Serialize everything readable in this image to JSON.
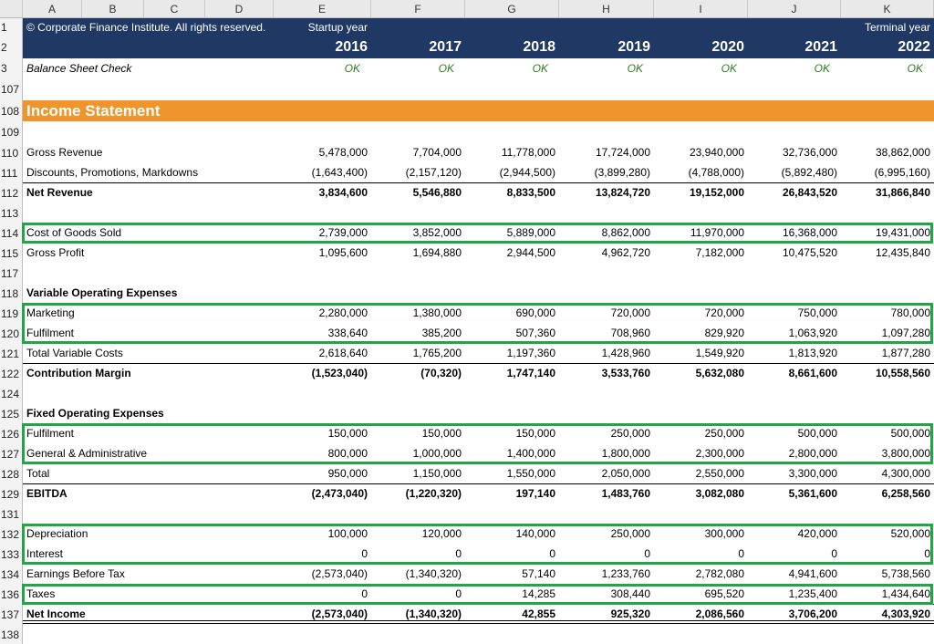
{
  "columns": [
    "A",
    "B",
    "C",
    "D",
    "E",
    "F",
    "G",
    "H",
    "I",
    "J",
    "K"
  ],
  "banner": {
    "rows": [
      1,
      2
    ],
    "copyright": "© Corporate Finance Institute. All rights reserved.",
    "startup_label": "Startup year",
    "terminal_label": "Terminal year",
    "years": [
      2016,
      2017,
      2018,
      2019,
      2020,
      2021,
      2022
    ]
  },
  "check": {
    "row": 3,
    "label": "Balance Sheet Check",
    "values": [
      "OK",
      "OK",
      "OK",
      "OK",
      "OK",
      "OK",
      "OK"
    ]
  },
  "rows": [
    {
      "row": 107
    },
    {
      "row": 108,
      "label": "Income Statement",
      "style": "section"
    },
    {
      "row": 109
    },
    {
      "row": 110,
      "label": "Gross Revenue",
      "values": [
        "5,478,000",
        "7,704,000",
        "11,778,000",
        "17,724,000",
        "23,940,000",
        "32,736,000",
        "38,862,000"
      ]
    },
    {
      "row": 111,
      "label": "Discounts, Promotions, Markdowns",
      "values": [
        "(1,643,400)",
        "(2,157,120)",
        "(2,944,500)",
        "(3,899,280)",
        "(4,788,000)",
        "(5,892,480)",
        "(6,995,160)"
      ]
    },
    {
      "row": 112,
      "label": "Net Revenue",
      "style": "bold",
      "values": [
        "3,834,600",
        "5,546,880",
        "8,833,500",
        "13,824,720",
        "19,152,000",
        "26,843,520",
        "31,866,840"
      ]
    },
    {
      "row": 113
    },
    {
      "row": 114,
      "label": "Cost of Goods Sold",
      "highlight": true,
      "values": [
        "2,739,000",
        "3,852,000",
        "5,889,000",
        "8,862,000",
        "11,970,000",
        "16,368,000",
        "19,431,000"
      ]
    },
    {
      "row": 115,
      "label": "Gross Profit",
      "values": [
        "1,095,600",
        "1,694,880",
        "2,944,500",
        "4,962,720",
        "7,182,000",
        "10,475,520",
        "12,435,840"
      ]
    },
    {
      "row": 117
    },
    {
      "row": 118,
      "label": "Variable Operating Expenses",
      "style": "bold"
    },
    {
      "row": 119,
      "label": "Marketing",
      "highlight": true,
      "values": [
        "2,280,000",
        "1,380,000",
        "690,000",
        "720,000",
        "720,000",
        "750,000",
        "780,000"
      ]
    },
    {
      "row": 120,
      "label": "Fulfilment",
      "highlight": true,
      "values": [
        "338,640",
        "385,200",
        "507,360",
        "708,960",
        "829,920",
        "1,063,920",
        "1,097,280"
      ]
    },
    {
      "row": 121,
      "label": "Total Variable Costs",
      "values": [
        "2,618,640",
        "1,765,200",
        "1,197,360",
        "1,428,960",
        "1,549,920",
        "1,813,920",
        "1,877,280"
      ]
    },
    {
      "row": 122,
      "label": "Contribution Margin",
      "style": "bold",
      "values": [
        "(1,523,040)",
        "(70,320)",
        "1,747,140",
        "3,533,760",
        "5,632,080",
        "8,661,600",
        "10,558,560"
      ]
    },
    {
      "row": 124
    },
    {
      "row": 125,
      "label": "Fixed Operating Expenses",
      "style": "bold"
    },
    {
      "row": 126,
      "label": "Fulfilment",
      "highlight": true,
      "values": [
        "150,000",
        "150,000",
        "150,000",
        "250,000",
        "250,000",
        "500,000",
        "500,000"
      ]
    },
    {
      "row": 127,
      "label": "General & Administrative",
      "highlight": true,
      "values": [
        "800,000",
        "1,000,000",
        "1,400,000",
        "1,800,000",
        "2,300,000",
        "2,800,000",
        "3,800,000"
      ]
    },
    {
      "row": 128,
      "label": "Total",
      "values": [
        "950,000",
        "1,150,000",
        "1,550,000",
        "2,050,000",
        "2,550,000",
        "3,300,000",
        "4,300,000"
      ]
    },
    {
      "row": 129,
      "label": "EBITDA",
      "style": "bold",
      "values": [
        "(2,473,040)",
        "(1,220,320)",
        "197,140",
        "1,483,760",
        "3,082,080",
        "5,361,600",
        "6,258,560"
      ]
    },
    {
      "row": 131
    },
    {
      "row": 132,
      "label": "Depreciation",
      "highlight": true,
      "values": [
        "100,000",
        "120,000",
        "140,000",
        "250,000",
        "300,000",
        "420,000",
        "520,000"
      ]
    },
    {
      "row": 133,
      "label": "Interest",
      "highlight": true,
      "values": [
        "0",
        "0",
        "0",
        "0",
        "0",
        "0",
        "0"
      ]
    },
    {
      "row": 134,
      "label": "Earnings Before Tax",
      "values": [
        "(2,573,040)",
        "(1,340,320)",
        "57,140",
        "1,233,760",
        "2,782,080",
        "4,941,600",
        "5,738,560"
      ]
    },
    {
      "row": 136,
      "label": "Taxes",
      "highlight": true,
      "values": [
        "0",
        "0",
        "14,285",
        "308,440",
        "695,520",
        "1,235,400",
        "1,434,640"
      ]
    },
    {
      "row": 137,
      "label": "Net Income",
      "style": "bold",
      "values": [
        "(2,573,040)",
        "(1,340,320)",
        "42,855",
        "925,320",
        "2,086,560",
        "3,706,200",
        "4,303,920"
      ]
    },
    {
      "row": 138
    }
  ]
}
